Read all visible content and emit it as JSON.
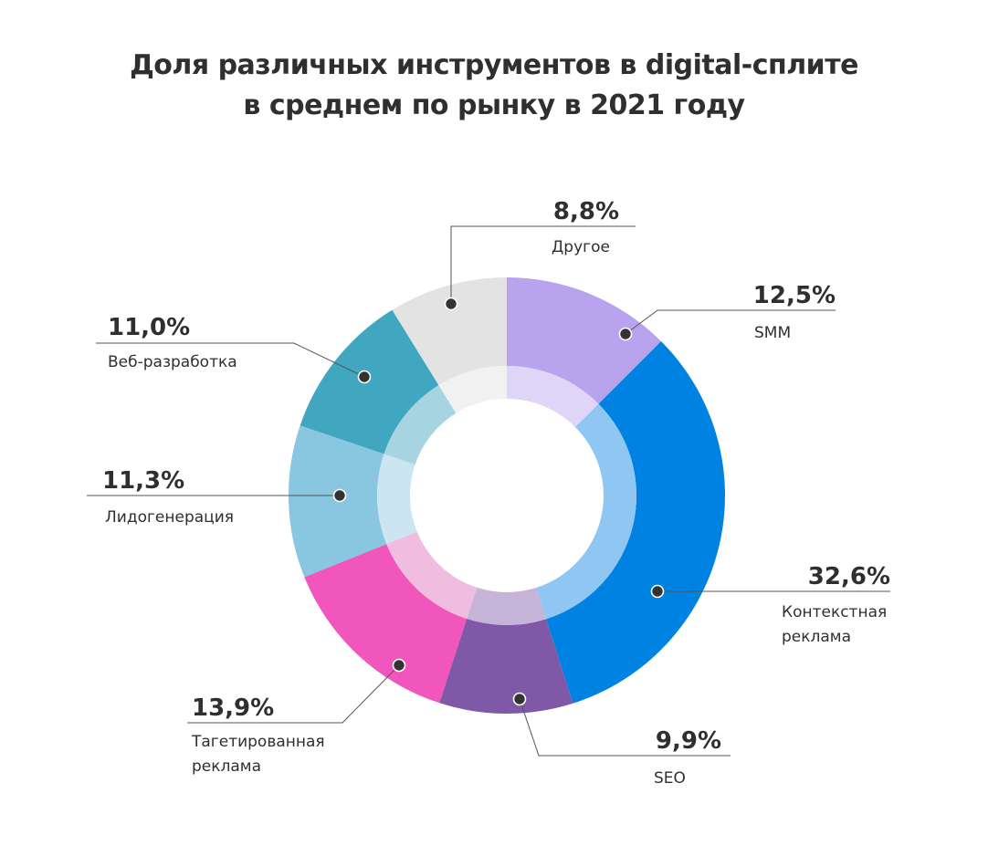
{
  "chart_data": {
    "type": "pie",
    "title": [
      "Доля различных инструментов в digital-сплите",
      "в среднем по рынку в 2021 году"
    ],
    "slices": [
      {
        "label": [
          "SMM"
        ],
        "value": 12.5,
        "value_label": "12,5%",
        "color": "#b8a4ee",
        "inner_color": "#dfd6f7"
      },
      {
        "label": [
          "Контекстная",
          "реклама"
        ],
        "value": 32.6,
        "value_label": "32,6%",
        "color": "#0082e3",
        "inner_color": "#8fc6f2"
      },
      {
        "label": [
          "SEO"
        ],
        "value": 9.9,
        "value_label": "9,9%",
        "color": "#7f58a8",
        "inner_color": "#c5b3d8"
      },
      {
        "label": [
          "Тагетированная",
          "реклама"
        ],
        "value": 13.9,
        "value_label": "13,9%",
        "color": "#f156bd",
        "inner_color": "#f0bde0"
      },
      {
        "label": [
          "Лидогенерация"
        ],
        "value": 11.3,
        "value_label": "11,3%",
        "color": "#89c6df",
        "inner_color": "#cce6f1"
      },
      {
        "label": [
          "Веб-разработка"
        ],
        "value": 11.0,
        "value_label": "11,0%",
        "color": "#41a6bf",
        "inner_color": "#a6d4e0"
      },
      {
        "label": [
          "Другое"
        ],
        "value": 8.8,
        "value_label": "8,8%",
        "color": "#e3e3e3",
        "inner_color": "#f1f1f1"
      }
    ]
  }
}
